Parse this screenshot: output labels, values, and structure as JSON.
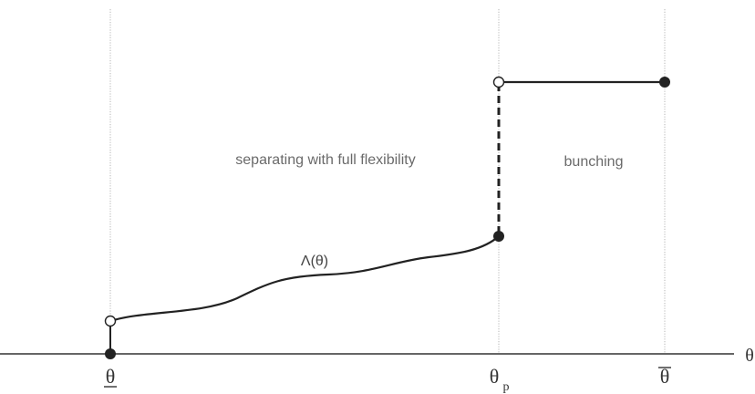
{
  "regions": {
    "separating_label": "separating with full flexibility",
    "bunching_label": "bunching"
  },
  "curve": {
    "label": "Λ(θ)"
  },
  "axis": {
    "name": "θ",
    "ticks": {
      "theta_low": "θ",
      "theta_p_main": "θ",
      "theta_p_sub": "p",
      "theta_high": "θ"
    }
  },
  "colors": {
    "curve": "#222222",
    "guide_lines": "#b5b5b5",
    "axis": "#333333",
    "text": "#6a6a6a"
  }
}
